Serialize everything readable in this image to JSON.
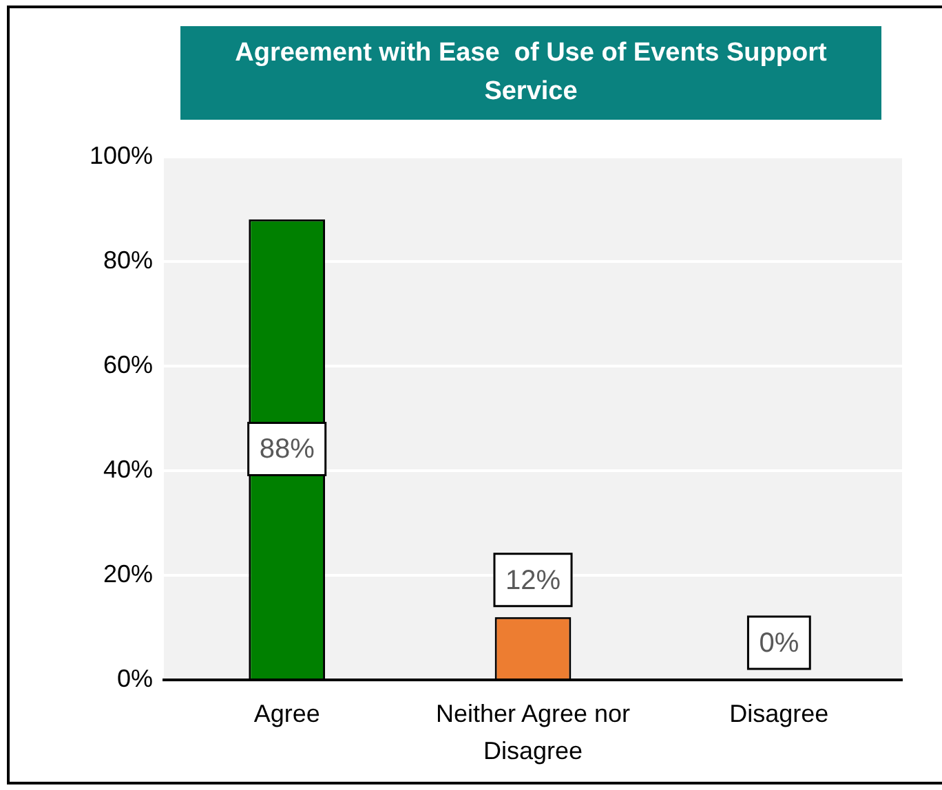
{
  "chart_data": {
    "type": "bar",
    "title": "Agreement with Ease  of Use of Events Support Service",
    "categories": [
      "Agree",
      "Neither Agree nor Disagree",
      "Disagree"
    ],
    "values": [
      88,
      12,
      0
    ],
    "colors": [
      "#008000",
      "#ed7d31",
      null
    ],
    "value_labels": [
      "88%",
      "12%",
      "0%"
    ],
    "ylim": [
      0,
      100
    ],
    "yticks": [
      {
        "value": 0,
        "label": "0%"
      },
      {
        "value": 20,
        "label": "20%"
      },
      {
        "value": 40,
        "label": "40%"
      },
      {
        "value": 60,
        "label": "60%"
      },
      {
        "value": 80,
        "label": "80%"
      },
      {
        "value": 100,
        "label": "100%"
      }
    ],
    "grid": "y"
  }
}
